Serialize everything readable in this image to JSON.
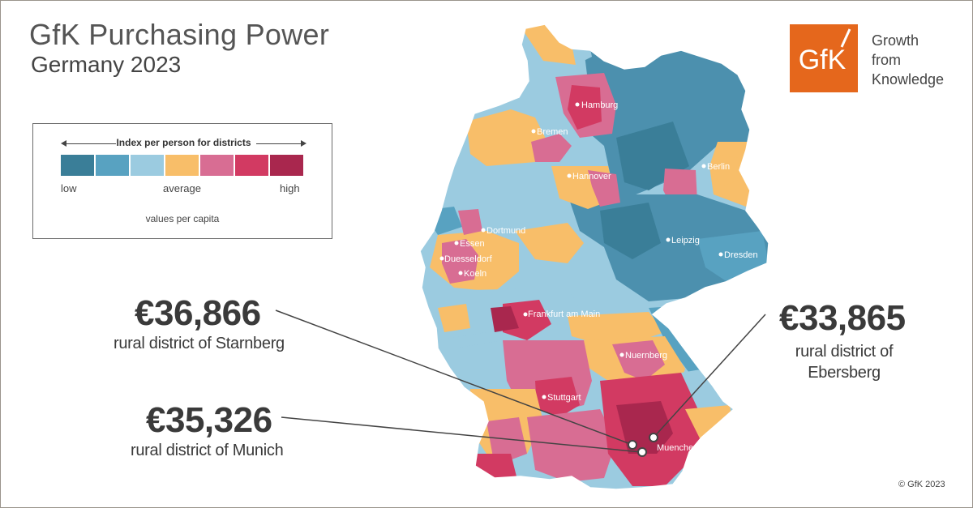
{
  "header": {
    "title": "GfK Purchasing Power",
    "subtitle": "Germany 2023"
  },
  "legend": {
    "heading": "Index per person for districts",
    "colors": [
      "#3a7e98",
      "#58a2c1",
      "#9bcbe0",
      "#f8be69",
      "#d86d93",
      "#d23a62",
      "#a9274e"
    ],
    "low_label": "low",
    "average_label": "average",
    "high_label": "high",
    "note": "values per capita"
  },
  "brand": {
    "logo_text": "GfK",
    "logo_color": "#e5671c",
    "tagline": [
      "Growth",
      "from",
      "Knowledge"
    ]
  },
  "callouts": [
    {
      "amount": "€36,866",
      "district": "rural district of Starnberg"
    },
    {
      "amount": "€35,326",
      "district": "rural district of Munich"
    },
    {
      "amount": "€33,865",
      "district": "rural district of Ebersberg"
    }
  ],
  "cities": [
    "Hamburg",
    "Bremen",
    "Berlin",
    "Hannover",
    "Dortmund",
    "Essen",
    "Duesseldorf",
    "Koeln",
    "Leipzig",
    "Dresden",
    "Frankfurt am Main",
    "Nuernberg",
    "Stuttgart",
    "Muenchen"
  ],
  "copyright": "© GfK 2023"
}
